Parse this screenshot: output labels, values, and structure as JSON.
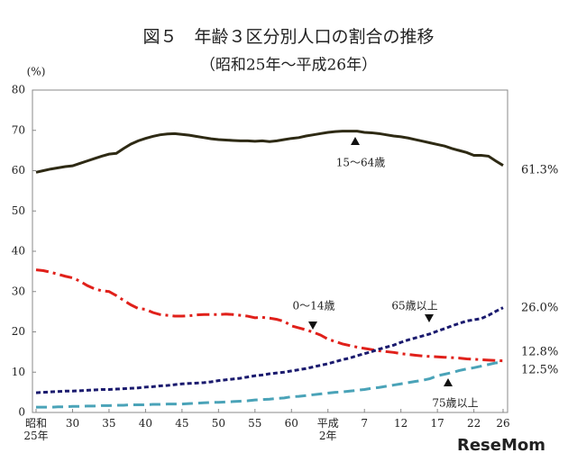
{
  "chart_data": {
    "type": "line",
    "title": "図５　年齢３区分別人口の割合の推移",
    "subtitle": "（昭和25年〜平成26年）",
    "y_label": "(%)",
    "watermark": "ReseMom",
    "categories": [
      "昭和25年",
      null,
      null,
      null,
      null,
      "30",
      null,
      null,
      null,
      null,
      "35",
      null,
      null,
      null,
      null,
      "40",
      null,
      null,
      null,
      null,
      "45",
      null,
      null,
      null,
      null,
      "50",
      null,
      null,
      null,
      null,
      "55",
      null,
      null,
      null,
      null,
      "60",
      null,
      null,
      null,
      null,
      "平成2年",
      null,
      null,
      null,
      null,
      "7",
      null,
      null,
      null,
      null,
      "12",
      null,
      null,
      null,
      null,
      "17",
      null,
      null,
      null,
      null,
      "22",
      null,
      null,
      null,
      "26"
    ],
    "ylim": [
      0,
      80
    ],
    "yticks": [
      0,
      10,
      20,
      30,
      40,
      50,
      60,
      70,
      80
    ],
    "series": [
      {
        "name": "15〜64歳",
        "color": "#2e2a14",
        "dash": "none",
        "values": [
          59.6,
          60.0,
          60.4,
          60.7,
          61.0,
          61.2,
          61.8,
          62.4,
          63.0,
          63.6,
          64.1,
          64.3,
          65.5,
          66.6,
          67.4,
          68.0,
          68.5,
          68.9,
          69.1,
          69.2,
          69.0,
          68.8,
          68.5,
          68.2,
          67.9,
          67.7,
          67.6,
          67.5,
          67.4,
          67.4,
          67.3,
          67.4,
          67.2,
          67.4,
          67.7,
          68.0,
          68.2,
          68.6,
          68.9,
          69.2,
          69.5,
          69.7,
          69.8,
          69.8,
          69.8,
          69.5,
          69.4,
          69.2,
          68.9,
          68.6,
          68.4,
          68.1,
          67.7,
          67.3,
          66.9,
          66.5,
          66.1,
          65.5,
          65.0,
          64.5,
          63.8,
          63.8,
          63.6,
          62.4,
          61.3
        ],
        "value_labels": [
          null,
          null,
          null,
          null,
          null,
          null,
          null,
          null,
          null,
          null,
          null,
          null,
          null,
          null,
          null,
          null,
          null,
          null,
          null,
          null,
          null,
          null,
          null,
          null,
          null,
          null,
          null,
          null,
          null,
          null,
          null,
          null,
          null,
          null,
          null,
          null,
          null,
          null,
          null,
          null,
          null,
          null,
          null,
          null,
          null,
          null,
          null,
          null,
          null,
          null,
          null,
          null,
          null,
          null,
          null,
          null,
          null,
          null,
          null,
          null,
          null,
          null,
          null,
          null,
          "61.3%"
        ]
      },
      {
        "name": "0〜14歳",
        "color": "#e0201a",
        "dash": "14 5 3 5",
        "values": [
          35.4,
          35.2,
          34.8,
          34.3,
          33.8,
          33.4,
          32.6,
          31.5,
          30.7,
          30.2,
          30.0,
          29.0,
          27.8,
          26.7,
          25.8,
          25.6,
          24.8,
          24.3,
          24.1,
          23.9,
          23.9,
          24.0,
          24.2,
          24.3,
          24.3,
          24.3,
          24.4,
          24.3,
          24.1,
          23.9,
          23.5,
          23.6,
          23.4,
          23.1,
          22.6,
          21.5,
          21.0,
          20.5,
          19.9,
          19.2,
          18.2,
          17.6,
          17.0,
          16.6,
          16.2,
          15.9,
          15.6,
          15.3,
          15.1,
          14.9,
          14.6,
          14.4,
          14.2,
          14.0,
          13.9,
          13.8,
          13.7,
          13.6,
          13.5,
          13.3,
          13.2,
          13.1,
          13.0,
          12.9,
          12.8
        ],
        "value_labels": [
          null,
          null,
          null,
          null,
          null,
          null,
          null,
          null,
          null,
          null,
          null,
          null,
          null,
          null,
          null,
          null,
          null,
          null,
          null,
          null,
          null,
          null,
          null,
          null,
          null,
          null,
          null,
          null,
          null,
          null,
          null,
          null,
          null,
          null,
          null,
          null,
          null,
          null,
          null,
          null,
          null,
          null,
          null,
          null,
          null,
          null,
          null,
          null,
          null,
          null,
          null,
          null,
          null,
          null,
          null,
          null,
          null,
          null,
          null,
          null,
          null,
          null,
          null,
          null,
          "12.8%"
        ]
      },
      {
        "name": "65歳以上",
        "color": "#1a1a6e",
        "dash": "5 3",
        "values": [
          4.9,
          5.0,
          5.1,
          5.2,
          5.3,
          5.3,
          5.4,
          5.5,
          5.6,
          5.7,
          5.7,
          5.8,
          5.9,
          6.0,
          6.1,
          6.3,
          6.4,
          6.6,
          6.7,
          6.9,
          7.1,
          7.2,
          7.3,
          7.4,
          7.6,
          7.9,
          8.1,
          8.3,
          8.5,
          8.8,
          9.1,
          9.3,
          9.6,
          9.8,
          10.0,
          10.3,
          10.6,
          10.9,
          11.3,
          11.7,
          12.1,
          12.6,
          13.1,
          13.5,
          14.1,
          14.6,
          15.1,
          15.7,
          16.2,
          16.7,
          17.4,
          18.0,
          18.5,
          19.0,
          19.5,
          20.2,
          20.8,
          21.5,
          22.1,
          22.7,
          23.0,
          23.3,
          24.1,
          25.1,
          26.0
        ],
        "value_labels": [
          null,
          null,
          null,
          null,
          null,
          null,
          null,
          null,
          null,
          null,
          null,
          null,
          null,
          null,
          null,
          null,
          null,
          null,
          null,
          null,
          null,
          null,
          null,
          null,
          null,
          null,
          null,
          null,
          null,
          null,
          null,
          null,
          null,
          null,
          null,
          null,
          null,
          null,
          null,
          null,
          null,
          null,
          null,
          null,
          null,
          null,
          null,
          null,
          null,
          null,
          null,
          null,
          null,
          null,
          null,
          null,
          null,
          null,
          null,
          null,
          null,
          null,
          null,
          null,
          "26.0%"
        ]
      },
      {
        "name": "75歳以上",
        "color": "#4aa3b8",
        "dash": "12 6",
        "values": [
          1.3,
          1.3,
          1.3,
          1.4,
          1.4,
          1.5,
          1.5,
          1.6,
          1.6,
          1.7,
          1.7,
          1.8,
          1.8,
          1.9,
          1.9,
          1.9,
          2.0,
          2.0,
          2.1,
          2.1,
          2.1,
          2.2,
          2.3,
          2.4,
          2.5,
          2.5,
          2.6,
          2.7,
          2.8,
          2.9,
          3.1,
          3.2,
          3.3,
          3.5,
          3.6,
          3.9,
          4.0,
          4.2,
          4.4,
          4.6,
          4.8,
          5.0,
          5.1,
          5.3,
          5.5,
          5.7,
          6.0,
          6.2,
          6.5,
          6.8,
          7.1,
          7.4,
          7.7,
          8.0,
          8.4,
          9.1,
          9.5,
          9.9,
          10.4,
          10.8,
          11.1,
          11.5,
          11.9,
          12.3,
          12.5
        ],
        "value_labels": [
          null,
          null,
          null,
          null,
          null,
          null,
          null,
          null,
          null,
          null,
          null,
          null,
          null,
          null,
          null,
          null,
          null,
          null,
          null,
          null,
          null,
          null,
          null,
          null,
          null,
          null,
          null,
          null,
          null,
          null,
          null,
          null,
          null,
          null,
          null,
          null,
          null,
          null,
          null,
          null,
          null,
          null,
          null,
          null,
          null,
          null,
          null,
          null,
          null,
          null,
          null,
          null,
          null,
          null,
          null,
          null,
          null,
          null,
          null,
          null,
          null,
          null,
          null,
          null,
          "12.5%"
        ]
      }
    ]
  }
}
